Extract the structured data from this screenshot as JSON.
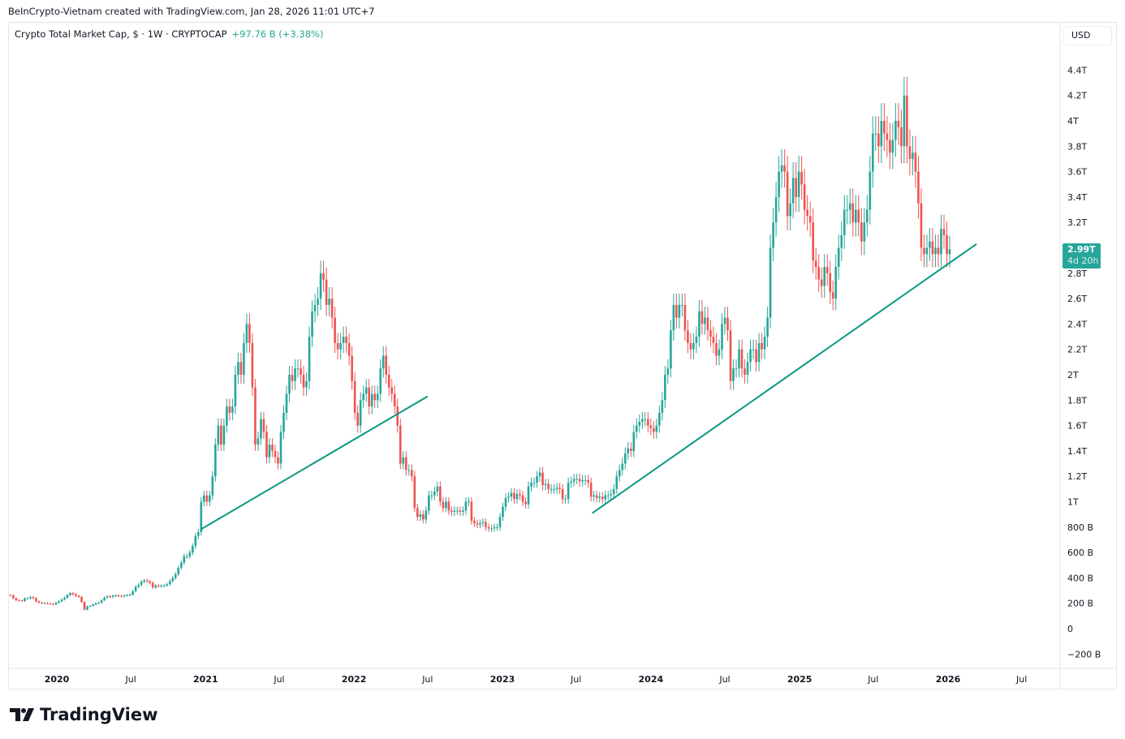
{
  "credit": "BeInCrypto-Vietnam created with TradingView.com, Jan 28, 2026 11:01 UTC+7",
  "legend": {
    "symbol": "Crypto Total Market Cap, $ · 1W · CRYPTOCAP",
    "change": "+97.76 B (+3.38%)"
  },
  "currency_button": "USD",
  "last_price": {
    "value": "2.99T",
    "countdown": "4d 20h"
  },
  "brand": "TradingView",
  "colors": {
    "up": "#26a69a",
    "down": "#ef5350",
    "trendline": "#089981",
    "change_text": "#22ab94"
  },
  "chart_data": {
    "type": "candlestick",
    "interval": "1W",
    "units": "USD billions (weekly close)",
    "first_week": "2019-09-02",
    "closes": [
      265,
      262,
      240,
      225,
      222,
      218,
      238,
      240,
      248,
      240,
      215,
      205,
      200,
      202,
      198,
      195,
      192,
      205,
      215,
      230,
      245,
      265,
      280,
      270,
      258,
      250,
      210,
      150,
      175,
      180,
      190,
      200,
      205,
      225,
      245,
      255,
      250,
      260,
      262,
      258,
      255,
      262,
      265,
      268,
      295,
      330,
      345,
      370,
      380,
      372,
      360,
      325,
      340,
      335,
      338,
      340,
      350,
      375,
      400,
      430,
      480,
      520,
      570,
      570,
      600,
      650,
      730,
      760,
      1000,
      1050,
      1000,
      1050,
      1200,
      1450,
      1600,
      1450,
      1600,
      1750,
      1700,
      1750,
      2000,
      2100,
      2000,
      2250,
      2400,
      2250,
      1900,
      1450,
      1500,
      1650,
      1550,
      1350,
      1450,
      1400,
      1350,
      1300,
      1550,
      1700,
      1850,
      2000,
      1950,
      2050,
      2050,
      2000,
      1900,
      1950,
      2300,
      2500,
      2550,
      2600,
      2800,
      2750,
      2550,
      2600,
      2450,
      2250,
      2200,
      2250,
      2300,
      2250,
      2150,
      1950,
      1700,
      1600,
      1800,
      1850,
      1900,
      1750,
      1850,
      1800,
      1850,
      2050,
      2150,
      2000,
      1900,
      1850,
      1750,
      1600,
      1300,
      1350,
      1250,
      1250,
      1200,
      950,
      880,
      900,
      860,
      930,
      1050,
      1050,
      1080,
      1120,
      1000,
      950,
      1000,
      930,
      920,
      930,
      930,
      920,
      930,
      1000,
      1000,
      850,
      830,
      820,
      830,
      840,
      800,
      790,
      790,
      800,
      800,
      880,
      960,
      1030,
      1040,
      1070,
      1020,
      1060,
      1050,
      1000,
      980,
      1120,
      1150,
      1150,
      1200,
      1230,
      1130,
      1140,
      1100,
      1100,
      1100,
      1110,
      1100,
      1020,
      1020,
      1150,
      1160,
      1180,
      1180,
      1160,
      1170,
      1170,
      1150,
      1040,
      1050,
      1030,
      1040,
      1020,
      1050,
      1050,
      1060,
      1100,
      1200,
      1250,
      1300,
      1380,
      1420,
      1400,
      1550,
      1600,
      1630,
      1650,
      1650,
      1600,
      1580,
      1550,
      1600,
      1700,
      1800,
      2000,
      2050,
      2350,
      2550,
      2450,
      2550,
      2550,
      2350,
      2250,
      2200,
      2250,
      2300,
      2500,
      2400,
      2450,
      2350,
      2300,
      2250,
      2150,
      2200,
      2400,
      2450,
      2350,
      1950,
      2050,
      2050,
      2200,
      2050,
      2000,
      2100,
      2200,
      2200,
      2100,
      2250,
      2200,
      2300,
      2450,
      3000,
      3200,
      3400,
      3600,
      3650,
      3600,
      3250,
      3350,
      3550,
      3400,
      3600,
      3500,
      3300,
      3250,
      3200,
      2900,
      2850,
      2750,
      2700,
      2850,
      2800,
      2650,
      2600,
      2850,
      3000,
      3100,
      3300,
      3300,
      3350,
      3200,
      3300,
      3200,
      3050,
      3200,
      3300,
      3600,
      3900,
      3900,
      3800,
      4000,
      3900,
      3850,
      3750,
      3850,
      4000,
      3950,
      3800,
      4200,
      3800,
      3700,
      3750,
      3600,
      3350,
      3000,
      2950,
      3000,
      3050,
      2950,
      3000,
      2950,
      3150,
      3100,
      2950,
      2990
    ],
    "trendlines": [
      {
        "from": {
          "date": "2020-12-19",
          "value": 780
        },
        "to": {
          "date": "2022-07-01",
          "value": 1830
        }
      },
      {
        "from": {
          "date": "2023-08-10",
          "value": 910
        },
        "to": {
          "date": "2026-03-12",
          "value": 3030
        }
      }
    ],
    "ylim": [
      -280,
      4550
    ],
    "y_ticks": [
      {
        "value": 4400,
        "label": "4.4T"
      },
      {
        "value": 4200,
        "label": "4.2T"
      },
      {
        "value": 4000,
        "label": "4T"
      },
      {
        "value": 3800,
        "label": "3.8T"
      },
      {
        "value": 3600,
        "label": "3.6T"
      },
      {
        "value": 3400,
        "label": "3.4T"
      },
      {
        "value": 3200,
        "label": "3.2T"
      },
      {
        "value": 2800,
        "label": "2.8T"
      },
      {
        "value": 2600,
        "label": "2.6T"
      },
      {
        "value": 2400,
        "label": "2.4T"
      },
      {
        "value": 2200,
        "label": "2.2T"
      },
      {
        "value": 2000,
        "label": "2T"
      },
      {
        "value": 1800,
        "label": "1.8T"
      },
      {
        "value": 1600,
        "label": "1.6T"
      },
      {
        "value": 1400,
        "label": "1.4T"
      },
      {
        "value": 1200,
        "label": "1.2T"
      },
      {
        "value": 1000,
        "label": "1T"
      },
      {
        "value": 800,
        "label": "800 B"
      },
      {
        "value": 600,
        "label": "600 B"
      },
      {
        "value": 400,
        "label": "400 B"
      },
      {
        "value": 200,
        "label": "200 B"
      },
      {
        "value": 0,
        "label": "0"
      },
      {
        "value": -200,
        "label": "−200 B"
      }
    ],
    "x_ticks": [
      {
        "date": "2020-01-01",
        "label": "2020",
        "major": true
      },
      {
        "date": "2020-07-01",
        "label": "Jul"
      },
      {
        "date": "2021-01-01",
        "label": "2021",
        "major": true
      },
      {
        "date": "2021-07-01",
        "label": "Jul"
      },
      {
        "date": "2022-01-01",
        "label": "2022",
        "major": true
      },
      {
        "date": "2022-07-01",
        "label": "Jul"
      },
      {
        "date": "2023-01-01",
        "label": "2023",
        "major": true
      },
      {
        "date": "2023-07-01",
        "label": "Jul"
      },
      {
        "date": "2024-01-01",
        "label": "2024",
        "major": true
      },
      {
        "date": "2024-07-01",
        "label": "Jul"
      },
      {
        "date": "2025-01-01",
        "label": "2025",
        "major": true
      },
      {
        "date": "2025-07-01",
        "label": "Jul"
      },
      {
        "date": "2026-01-01",
        "label": "2026",
        "major": true
      },
      {
        "date": "2026-07-01",
        "label": "Jul"
      }
    ],
    "grid": false
  }
}
